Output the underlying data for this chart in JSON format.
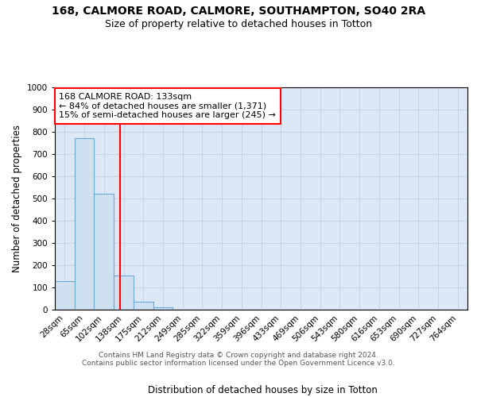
{
  "title1": "168, CALMORE ROAD, CALMORE, SOUTHAMPTON, SO40 2RA",
  "title2": "Size of property relative to detached houses in Totton",
  "xlabel": "Distribution of detached houses by size in Totton",
  "ylabel": "Number of detached properties",
  "bar_labels": [
    "28sqm",
    "65sqm",
    "102sqm",
    "138sqm",
    "175sqm",
    "212sqm",
    "249sqm",
    "285sqm",
    "322sqm",
    "359sqm",
    "396sqm",
    "433sqm",
    "469sqm",
    "506sqm",
    "543sqm",
    "580sqm",
    "616sqm",
    "653sqm",
    "690sqm",
    "727sqm",
    "764sqm"
  ],
  "bar_values": [
    130,
    770,
    520,
    155,
    35,
    10,
    0,
    0,
    0,
    0,
    0,
    0,
    0,
    0,
    0,
    0,
    0,
    0,
    0,
    0,
    0
  ],
  "bar_color": "#cfe0f0",
  "bar_edge_color": "#6aaad4",
  "vline_color": "red",
  "vline_x": 2.83,
  "annotation_text": "168 CALMORE ROAD: 133sqm\n← 84% of detached houses are smaller (1,371)\n15% of semi-detached houses are larger (245) →",
  "annotation_box_color": "white",
  "annotation_box_edge_color": "red",
  "ylim": [
    0,
    1000
  ],
  "yticks": [
    0,
    100,
    200,
    300,
    400,
    500,
    600,
    700,
    800,
    900,
    1000
  ],
  "grid_color": "#c8d4e0",
  "background_color": "#dce8f5",
  "footer": "Contains HM Land Registry data © Crown copyright and database right 2024.\nContains public sector information licensed under the Open Government Licence v3.0.",
  "title_fontsize": 10,
  "subtitle_fontsize": 9,
  "axis_label_fontsize": 8.5,
  "tick_fontsize": 7.5,
  "footer_fontsize": 6.5,
  "annotation_fontsize": 8
}
